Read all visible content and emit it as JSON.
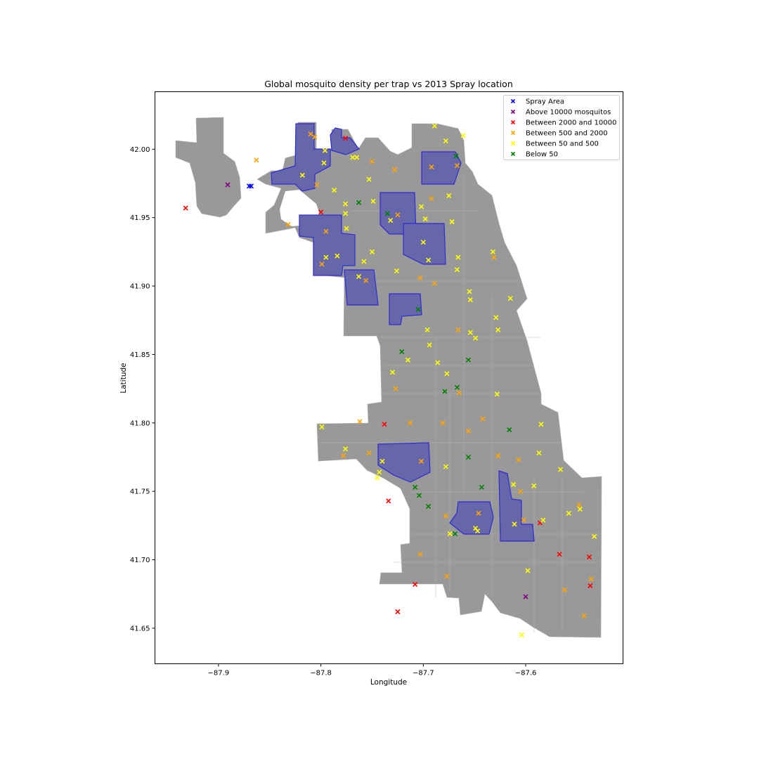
{
  "chart_data": {
    "type": "scatter",
    "title": "Global mosquito density per trap vs 2013 Spray location",
    "xlabel": "Longitude",
    "ylabel": "Latitude",
    "xlim": [
      -87.962,
      -87.505
    ],
    "ylim": [
      41.624,
      42.042
    ],
    "x_ticks": [
      -87.9,
      -87.8,
      -87.7,
      -87.6
    ],
    "x_tick_labels": [
      "−87.9",
      "−87.8",
      "−87.7",
      "−87.6"
    ],
    "y_ticks": [
      41.65,
      41.7,
      41.75,
      41.8,
      41.85,
      41.9,
      41.95,
      42.0
    ],
    "y_tick_labels": [
      "41.65",
      "41.70",
      "41.75",
      "41.80",
      "41.85",
      "41.90",
      "41.95",
      "42.00"
    ],
    "grid": false,
    "legend_position": "top-right",
    "background": "map of Chicago city boundary (grey)",
    "colors": {
      "map_fill": "#999999",
      "spray": "#0000ff",
      "spray_fill": "#6666aa",
      "above_10000": "#800080",
      "between_2000_10000": "#ff0000",
      "between_500_2000": "#ffa500",
      "between_50_500": "#ffff00",
      "below_50": "#008000"
    },
    "series": [
      {
        "name": "Spray Area",
        "color": "#0000ff",
        "marker": "x",
        "points": [
          [
            -87.87,
            41.973
          ],
          [
            -87.868,
            41.973
          ]
        ]
      },
      {
        "name": "Above 10000 mosquitos",
        "color": "#800080",
        "marker": "x",
        "points": [
          [
            -87.891,
            41.974
          ],
          [
            -87.6,
            41.673
          ]
        ]
      },
      {
        "name": "Between 2000 and 10000",
        "color": "#ff0000",
        "marker": "x",
        "points": [
          [
            -87.932,
            41.957
          ],
          [
            -87.776,
            42.008
          ],
          [
            -87.8,
            41.954
          ],
          [
            -87.738,
            41.799
          ],
          [
            -87.734,
            41.743
          ],
          [
            -87.708,
            41.682
          ],
          [
            -87.725,
            41.662
          ],
          [
            -87.586,
            41.727
          ],
          [
            -87.567,
            41.704
          ],
          [
            -87.538,
            41.702
          ],
          [
            -87.537,
            41.681
          ]
        ]
      },
      {
        "name": "Between 500 and 2000",
        "color": "#ffa500",
        "marker": "x",
        "points": [
          [
            -87.863,
            41.992
          ],
          [
            -87.832,
            41.945
          ],
          [
            -87.81,
            42.011
          ],
          [
            -87.806,
            42.009
          ],
          [
            -87.804,
            41.974
          ],
          [
            -87.795,
            41.94
          ],
          [
            -87.799,
            41.916
          ],
          [
            -87.75,
            41.991
          ],
          [
            -87.728,
            41.985
          ],
          [
            -87.725,
            41.952
          ],
          [
            -87.756,
            41.904
          ],
          [
            -87.692,
            41.987
          ],
          [
            -87.692,
            41.964
          ],
          [
            -87.703,
            41.906
          ],
          [
            -87.689,
            41.902
          ],
          [
            -87.667,
            41.988
          ],
          [
            -87.631,
            41.921
          ],
          [
            -87.666,
            41.868
          ],
          [
            -87.665,
            41.822
          ],
          [
            -87.727,
            41.825
          ],
          [
            -87.762,
            41.801
          ],
          [
            -87.778,
            41.776
          ],
          [
            -87.753,
            41.778
          ],
          [
            -87.713,
            41.8
          ],
          [
            -87.702,
            41.772
          ],
          [
            -87.681,
            41.8
          ],
          [
            -87.678,
            41.732
          ],
          [
            -87.656,
            41.794
          ],
          [
            -87.642,
            41.803
          ],
          [
            -87.627,
            41.776
          ],
          [
            -87.607,
            41.773
          ],
          [
            -87.602,
            41.729
          ],
          [
            -87.605,
            41.75
          ],
          [
            -87.646,
            41.734
          ],
          [
            -87.703,
            41.704
          ],
          [
            -87.677,
            41.688
          ],
          [
            -87.562,
            41.678
          ],
          [
            -87.536,
            41.686
          ],
          [
            -87.543,
            41.659
          ],
          [
            -87.548,
            41.74
          ]
        ]
      },
      {
        "name": "Between 50 and 500",
        "color": "#ffff00",
        "marker": "x",
        "points": [
          [
            -87.818,
            41.981
          ],
          [
            -87.796,
            41.999
          ],
          [
            -87.797,
            41.99
          ],
          [
            -87.787,
            41.97
          ],
          [
            -87.776,
            41.96
          ],
          [
            -87.776,
            41.953
          ],
          [
            -87.775,
            41.942
          ],
          [
            -87.769,
            41.994
          ],
          [
            -87.765,
            41.994
          ],
          [
            -87.753,
            41.978
          ],
          [
            -87.749,
            41.962
          ],
          [
            -87.795,
            41.921
          ],
          [
            -87.784,
            41.922
          ],
          [
            -87.758,
            41.918
          ],
          [
            -87.75,
            41.925
          ],
          [
            -87.763,
            41.907
          ],
          [
            -87.732,
            41.948
          ],
          [
            -87.702,
            41.958
          ],
          [
            -87.698,
            41.949
          ],
          [
            -87.7,
            41.932
          ],
          [
            -87.695,
            41.919
          ],
          [
            -87.726,
            41.911
          ],
          [
            -87.689,
            42.017
          ],
          [
            -87.678,
            42.006
          ],
          [
            -87.661,
            42.01
          ],
          [
            -87.675,
            41.966
          ],
          [
            -87.672,
            41.947
          ],
          [
            -87.666,
            41.921
          ],
          [
            -87.667,
            41.912
          ],
          [
            -87.655,
            41.896
          ],
          [
            -87.654,
            41.89
          ],
          [
            -87.632,
            41.925
          ],
          [
            -87.629,
            41.877
          ],
          [
            -87.627,
            41.868
          ],
          [
            -87.615,
            41.891
          ],
          [
            -87.696,
            41.868
          ],
          [
            -87.694,
            41.857
          ],
          [
            -87.686,
            41.844
          ],
          [
            -87.677,
            41.836
          ],
          [
            -87.654,
            41.866
          ],
          [
            -87.649,
            41.862
          ],
          [
            -87.715,
            41.846
          ],
          [
            -87.73,
            41.837
          ],
          [
            -87.628,
            41.821
          ],
          [
            -87.585,
            41.799
          ],
          [
            -87.799,
            41.797
          ],
          [
            -87.776,
            41.781
          ],
          [
            -87.74,
            41.772
          ],
          [
            -87.745,
            41.76
          ],
          [
            -87.743,
            41.764
          ],
          [
            -87.678,
            41.768
          ],
          [
            -87.612,
            41.755
          ],
          [
            -87.592,
            41.754
          ],
          [
            -87.587,
            41.778
          ],
          [
            -87.566,
            41.766
          ],
          [
            -87.558,
            41.734
          ],
          [
            -87.547,
            41.737
          ],
          [
            -87.533,
            41.717
          ],
          [
            -87.583,
            41.729
          ],
          [
            -87.611,
            41.726
          ],
          [
            -87.649,
            41.723
          ],
          [
            -87.647,
            41.721
          ],
          [
            -87.674,
            41.719
          ],
          [
            -87.598,
            41.692
          ],
          [
            -87.604,
            41.645
          ]
        ]
      },
      {
        "name": "Below 50",
        "color": "#008000",
        "marker": "x",
        "points": [
          [
            -87.763,
            41.961
          ],
          [
            -87.735,
            41.953
          ],
          [
            -87.668,
            41.995
          ],
          [
            -87.705,
            41.883
          ],
          [
            -87.721,
            41.852
          ],
          [
            -87.656,
            41.846
          ],
          [
            -87.667,
            41.826
          ],
          [
            -87.679,
            41.823
          ],
          [
            -87.616,
            41.795
          ],
          [
            -87.656,
            41.775
          ],
          [
            -87.643,
            41.753
          ],
          [
            -87.708,
            41.753
          ],
          [
            -87.704,
            41.747
          ],
          [
            -87.695,
            41.739
          ],
          [
            -87.669,
            41.719
          ]
        ]
      }
    ]
  }
}
